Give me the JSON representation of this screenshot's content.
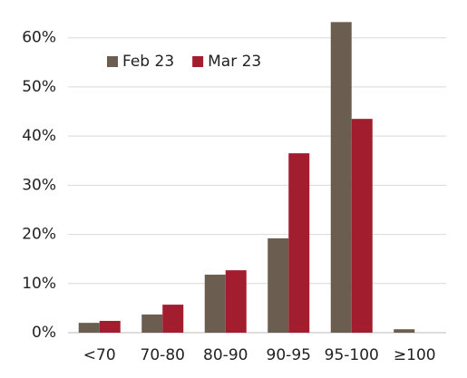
{
  "chart_data": {
    "type": "bar",
    "categories": [
      "<70",
      "70-80",
      "80-90",
      "90-95",
      "95-100",
      "≥100"
    ],
    "series": [
      {
        "name": "Feb 23",
        "color": "#6b5e51",
        "values": [
          2.0,
          3.7,
          11.8,
          19.2,
          63.2,
          0.7
        ]
      },
      {
        "name": "Mar 23",
        "color": "#a21d2e",
        "values": [
          2.4,
          5.7,
          12.7,
          36.5,
          43.5,
          0
        ]
      }
    ],
    "ylim": [
      0,
      64
    ],
    "yticks": [
      {
        "value": 0,
        "label": "0%"
      },
      {
        "value": 10,
        "label": "10%"
      },
      {
        "value": 20,
        "label": "20%"
      },
      {
        "value": 30,
        "label": "30%"
      },
      {
        "value": 40,
        "label": "40%"
      },
      {
        "value": 50,
        "label": "50%"
      },
      {
        "value": 60,
        "label": "60%"
      }
    ],
    "grid": true,
    "legend": "top-left"
  }
}
